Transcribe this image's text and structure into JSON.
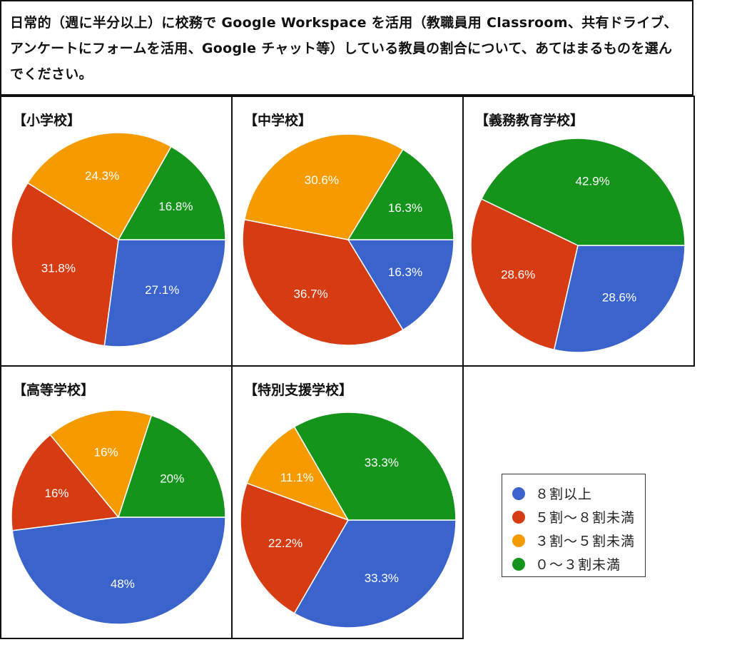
{
  "question": {
    "text": "日常的（週に半分以上）に校務で Google Workspace を活用（教職員用 Classroom、共有ドライブ、アンケートにフォームを活用、Google チャット等）している教員の割合について、あてはまるものを選んでください。"
  },
  "legend": [
    {
      "label": "８割以上",
      "color": "#3a64cc"
    },
    {
      "label": "５割～８割未満",
      "color": "#d63b12"
    },
    {
      "label": "３割～５割未満",
      "color": "#f59b00"
    },
    {
      "label": "０～３割未満",
      "color": "#14941a"
    }
  ],
  "chart_data": [
    {
      "type": "pie",
      "title": "【小学校】",
      "categories": [
        "８割以上",
        "５割～８割未満",
        "３割～５割未満",
        "０～３割未満"
      ],
      "values": [
        27.1,
        31.8,
        24.3,
        16.8
      ],
      "labels": [
        "27.1%",
        "31.8%",
        "24.3%",
        "16.8%"
      ]
    },
    {
      "type": "pie",
      "title": "【中学校】",
      "categories": [
        "８割以上",
        "５割～８割未満",
        "３割～５割未満",
        "０～３割未満"
      ],
      "values": [
        16.3,
        36.7,
        30.6,
        16.3
      ],
      "labels": [
        "16.3%",
        "36.7%",
        "30.6%",
        "16.3%"
      ]
    },
    {
      "type": "pie",
      "title": "【義務教育学校】",
      "categories": [
        "８割以上",
        "５割～８割未満",
        "３割～５割未満",
        "０～３割未満"
      ],
      "values": [
        28.6,
        28.6,
        0,
        42.9
      ],
      "labels": [
        "28.6%",
        "28.6%",
        "",
        "42.9%"
      ]
    },
    {
      "type": "pie",
      "title": "【高等学校】",
      "categories": [
        "８割以上",
        "５割～８割未満",
        "３割～５割未満",
        "０～３割未満"
      ],
      "values": [
        48,
        16,
        16,
        20
      ],
      "labels": [
        "48%",
        "16%",
        "16%",
        "20%"
      ]
    },
    {
      "type": "pie",
      "title": "【特別支援学校】",
      "categories": [
        "８割以上",
        "５割～８割未満",
        "３割～５割未満",
        "０～３割未満"
      ],
      "values": [
        33.3,
        22.2,
        11.1,
        33.3
      ],
      "labels": [
        "33.3%",
        "22.2%",
        "11.1%",
        "33.3%"
      ]
    }
  ]
}
